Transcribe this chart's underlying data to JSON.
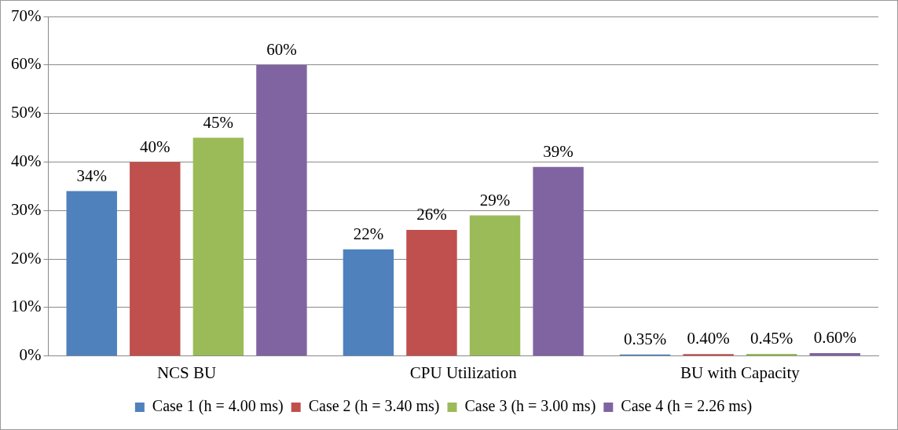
{
  "chart_data": {
    "type": "bar",
    "categories": [
      "NCS BU",
      "CPU Utilization",
      "BU with Capacity"
    ],
    "series": [
      {
        "name": "Case 1 (h = 4.00 ms)",
        "color": "#4f81bd",
        "values": [
          34,
          22,
          0.35
        ],
        "value_labels": [
          "34%",
          "22%",
          "0.35%"
        ]
      },
      {
        "name": "Case 2 (h = 3.40 ms)",
        "color": "#c0504d",
        "values": [
          40,
          26,
          0.4
        ],
        "value_labels": [
          "40%",
          "26%",
          "0.40%"
        ]
      },
      {
        "name": "Case 3 (h = 3.00 ms)",
        "color": "#9bbb59",
        "values": [
          45,
          29,
          0.45
        ],
        "value_labels": [
          "45%",
          "29%",
          "0.45%"
        ]
      },
      {
        "name": "Case 4 (h = 2.26 ms)",
        "color": "#8064a2",
        "values": [
          60,
          39,
          0.6
        ],
        "value_labels": [
          "60%",
          "39%",
          "0.60%"
        ]
      }
    ],
    "ylim": [
      0,
      70
    ],
    "yticks": [
      {
        "value": 0,
        "label": "0%"
      },
      {
        "value": 10,
        "label": "10%"
      },
      {
        "value": 20,
        "label": "20%"
      },
      {
        "value": 30,
        "label": "30%"
      },
      {
        "value": 40,
        "label": "40%"
      },
      {
        "value": 50,
        "label": "50%"
      },
      {
        "value": 60,
        "label": "60%"
      },
      {
        "value": 70,
        "label": "70%"
      }
    ],
    "grid": "y",
    "legend": "bottom"
  }
}
